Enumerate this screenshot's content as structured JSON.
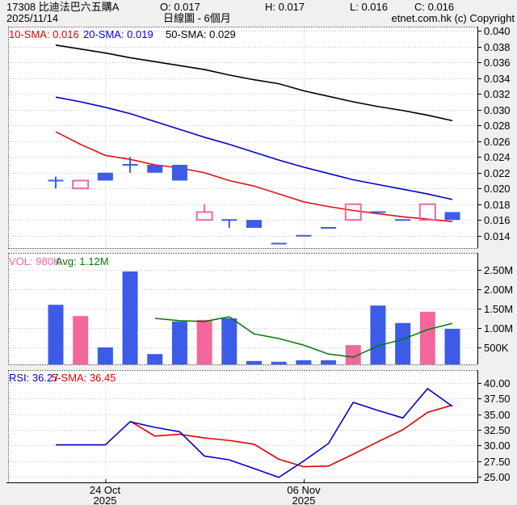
{
  "header": {
    "title": "17308 比迪法巴六五購A",
    "date": "2025/11/14",
    "open_label": "O: 0.017",
    "high_label": "H: 0.017",
    "low_label": "L: 0.016",
    "close_label": "C: 0.016",
    "chart_type": "日線圖 - 6個月",
    "copyright": "etnet.com.hk (c) Copyright"
  },
  "legend": {
    "sma10": "10-SMA: 0.016",
    "sma20": "20-SMA: 0.019",
    "sma50": "50-SMA: 0.029"
  },
  "volume_legend": {
    "vol": "VOL: 980K",
    "avg": "Avg: 1.12M"
  },
  "rsi_legend": {
    "rsi": "RSI: 36.27",
    "sma": "5-SMA: 36.45"
  },
  "x_axis": {
    "labels": [
      {
        "line1": "24 Oct",
        "line2": "2025",
        "candle_index": 2
      },
      {
        "line1": "06 Nov",
        "line2": "2025",
        "candle_index": 10
      }
    ]
  },
  "colors": {
    "up": "#f4679d",
    "down": "#3c5ce8",
    "sma10": "#dd1111",
    "sma20": "#0000cc",
    "sma50": "#000000",
    "avg_line": "#007700",
    "rsi_line": "#0000cc",
    "rsi_sma_line": "#dd0000",
    "grid": "#c6c6c6",
    "axis": "#000000",
    "panel_bg": "#ffffff",
    "page_bg": "#f0f0f0"
  },
  "chart_data": [
    {
      "type": "candlestick",
      "panel": "price",
      "ylim": [
        0.0124,
        0.0405
      ],
      "y_ticks": [
        {
          "v": 0.04,
          "label": "0.040"
        },
        {
          "v": 0.038,
          "label": "0.038"
        },
        {
          "v": 0.036,
          "label": "0.036"
        },
        {
          "v": 0.034,
          "label": "0.034"
        },
        {
          "v": 0.032,
          "label": "0.032"
        },
        {
          "v": 0.03,
          "label": "0.030"
        },
        {
          "v": 0.028,
          "label": "0.028"
        },
        {
          "v": 0.026,
          "label": "0.026"
        },
        {
          "v": 0.024,
          "label": "0.024"
        },
        {
          "v": 0.022,
          "label": "0.022"
        },
        {
          "v": 0.02,
          "label": "0.020"
        },
        {
          "v": 0.018,
          "label": "0.018"
        },
        {
          "v": 0.016,
          "label": "0.016"
        },
        {
          "v": 0.014,
          "label": "0.014"
        }
      ],
      "candles": [
        {
          "o": 0.021,
          "h": 0.0215,
          "l": 0.02,
          "c": 0.021,
          "dir": "down"
        },
        {
          "o": 0.02,
          "h": 0.021,
          "l": 0.02,
          "c": 0.021,
          "dir": "up"
        },
        {
          "o": 0.022,
          "h": 0.022,
          "l": 0.021,
          "c": 0.021,
          "dir": "down"
        },
        {
          "o": 0.023,
          "h": 0.024,
          "l": 0.022,
          "c": 0.023,
          "dir": "down"
        },
        {
          "o": 0.023,
          "h": 0.023,
          "l": 0.022,
          "c": 0.022,
          "dir": "down"
        },
        {
          "o": 0.023,
          "h": 0.023,
          "l": 0.021,
          "c": 0.021,
          "dir": "down"
        },
        {
          "o": 0.016,
          "h": 0.018,
          "l": 0.016,
          "c": 0.017,
          "dir": "up"
        },
        {
          "o": 0.016,
          "h": 0.016,
          "l": 0.015,
          "c": 0.016,
          "dir": "down"
        },
        {
          "o": 0.016,
          "h": 0.016,
          "l": 0.015,
          "c": 0.015,
          "dir": "down"
        },
        {
          "o": 0.013,
          "h": 0.013,
          "l": 0.013,
          "c": 0.013,
          "dir": "down"
        },
        {
          "o": 0.014,
          "h": 0.014,
          "l": 0.014,
          "c": 0.014,
          "dir": "down"
        },
        {
          "o": 0.015,
          "h": 0.015,
          "l": 0.015,
          "c": 0.015,
          "dir": "down"
        },
        {
          "o": 0.016,
          "h": 0.018,
          "l": 0.016,
          "c": 0.018,
          "dir": "up"
        },
        {
          "o": 0.017,
          "h": 0.017,
          "l": 0.017,
          "c": 0.017,
          "dir": "down"
        },
        {
          "o": 0.016,
          "h": 0.016,
          "l": 0.016,
          "c": 0.016,
          "dir": "down"
        },
        {
          "o": 0.016,
          "h": 0.018,
          "l": 0.016,
          "c": 0.018,
          "dir": "up"
        },
        {
          "o": 0.017,
          "h": 0.017,
          "l": 0.016,
          "c": 0.016,
          "dir": "down"
        }
      ],
      "series": [
        {
          "name": "10-SMA",
          "color_key": "sma10",
          "start_index": 0,
          "values": [
            0.0272,
            0.0256,
            0.0242,
            0.0237,
            0.023,
            0.0226,
            0.022,
            0.021,
            0.0203,
            0.0193,
            0.0183,
            0.0177,
            0.0172,
            0.0168,
            0.0164,
            0.0161,
            0.0158
          ]
        },
        {
          "name": "20-SMA",
          "color_key": "sma20",
          "start_index": 0,
          "values": [
            0.0316,
            0.031,
            0.0303,
            0.0295,
            0.0285,
            0.0275,
            0.0265,
            0.0256,
            0.0246,
            0.0236,
            0.0227,
            0.0219,
            0.0211,
            0.0205,
            0.0199,
            0.0193,
            0.0186
          ]
        },
        {
          "name": "50-SMA",
          "color_key": "sma50",
          "start_index": 0,
          "values": [
            0.0382,
            0.0377,
            0.0372,
            0.0366,
            0.0361,
            0.0356,
            0.0351,
            0.0344,
            0.0338,
            0.0333,
            0.0324,
            0.0317,
            0.031,
            0.0304,
            0.0299,
            0.0293,
            0.0286
          ]
        }
      ]
    },
    {
      "type": "bar",
      "panel": "volume",
      "unit": "M shares",
      "ylim": [
        0,
        2.9
      ],
      "y_ticks": [
        {
          "v": 2.5,
          "label": "2.50M"
        },
        {
          "v": 2.0,
          "label": "2.00M"
        },
        {
          "v": 1.5,
          "label": "1.50M"
        },
        {
          "v": 1.0,
          "label": "1.00M"
        },
        {
          "v": 0.5,
          "label": "500K"
        }
      ],
      "bars": [
        {
          "value": 1.6,
          "dir": "down"
        },
        {
          "value": 1.31,
          "dir": "up"
        },
        {
          "value": 0.5,
          "dir": "down"
        },
        {
          "value": 2.46,
          "dir": "down"
        },
        {
          "value": 0.33,
          "dir": "down"
        },
        {
          "value": 1.17,
          "dir": "down"
        },
        {
          "value": 1.21,
          "dir": "up"
        },
        {
          "value": 1.25,
          "dir": "down"
        },
        {
          "value": 0.15,
          "dir": "down"
        },
        {
          "value": 0.13,
          "dir": "down"
        },
        {
          "value": 0.17,
          "dir": "down"
        },
        {
          "value": 0.17,
          "dir": "down"
        },
        {
          "value": 0.56,
          "dir": "up"
        },
        {
          "value": 1.58,
          "dir": "down"
        },
        {
          "value": 1.13,
          "dir": "down"
        },
        {
          "value": 1.42,
          "dir": "up"
        },
        {
          "value": 0.98,
          "dir": "down"
        }
      ],
      "avg_line": {
        "name": "Avg",
        "start_index": 4,
        "values": [
          1.25,
          1.19,
          1.17,
          1.29,
          0.85,
          0.73,
          0.56,
          0.33,
          0.25,
          0.54,
          0.71,
          0.96,
          1.12
        ]
      }
    },
    {
      "type": "line",
      "panel": "rsi",
      "ylim": [
        24.3,
        40.6
      ],
      "y_ticks": [
        {
          "v": 40.0,
          "label": "40.00"
        },
        {
          "v": 37.5,
          "label": "37.50"
        },
        {
          "v": 35.0,
          "label": "35.00"
        },
        {
          "v": 32.5,
          "label": "32.50"
        },
        {
          "v": 30.0,
          "label": "30.00"
        },
        {
          "v": 27.5,
          "label": "27.50"
        },
        {
          "v": 25.0,
          "label": "25.00"
        }
      ],
      "series": [
        {
          "name": "RSI",
          "color_key": "rsi_line",
          "start_index": 0,
          "values": [
            30.1,
            30.1,
            30.1,
            33.8,
            32.9,
            32.2,
            28.3,
            27.7,
            26.3,
            24.9,
            27.5,
            30.3,
            36.9,
            35.6,
            34.4,
            39.1,
            36.27
          ]
        },
        {
          "name": "5-SMA",
          "color_key": "rsi_sma_line",
          "start_index": 3,
          "values": [
            33.9,
            31.5,
            31.8,
            31.2,
            30.8,
            30.2,
            27.8,
            26.6,
            26.7,
            28.6,
            30.6,
            32.5,
            35.3,
            36.45
          ]
        }
      ]
    }
  ]
}
